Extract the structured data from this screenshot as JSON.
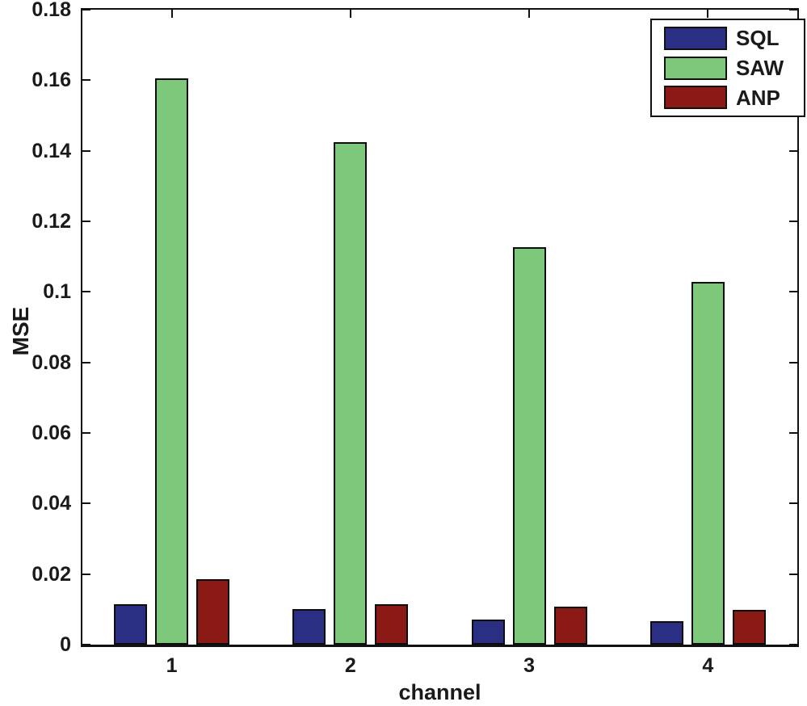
{
  "figure": {
    "background": "#ffffff",
    "axis_color": "#111111",
    "text_color": "#1a1a1a"
  },
  "chart_data": {
    "type": "bar",
    "title": "",
    "xlabel": "channel",
    "ylabel": "MSE",
    "categories": [
      "1",
      "2",
      "3",
      "4"
    ],
    "series": [
      {
        "name": "SQL",
        "color": "#2B2F84",
        "values": [
          0.0115,
          0.01,
          0.0072,
          0.0067
        ]
      },
      {
        "name": "SAW",
        "color": "#7EC87B",
        "values": [
          0.1605,
          0.1425,
          0.1127,
          0.1028
        ]
      },
      {
        "name": "ANP",
        "color": "#8B1A17",
        "values": [
          0.0185,
          0.0115,
          0.0108,
          0.0098
        ]
      }
    ],
    "ylim": [
      0,
      0.18
    ],
    "ytick_step": 0.02,
    "ytick_labels": [
      "0",
      "0.02",
      "0.04",
      "0.06",
      "0.08",
      "0.1",
      "0.12",
      "0.14",
      "0.16",
      "0.18"
    ],
    "grid": false,
    "bar_edge_color": "#0d0d0d",
    "legend": {
      "position": "top-right",
      "entries": [
        "SQL",
        "SAW",
        "ANP"
      ]
    }
  }
}
